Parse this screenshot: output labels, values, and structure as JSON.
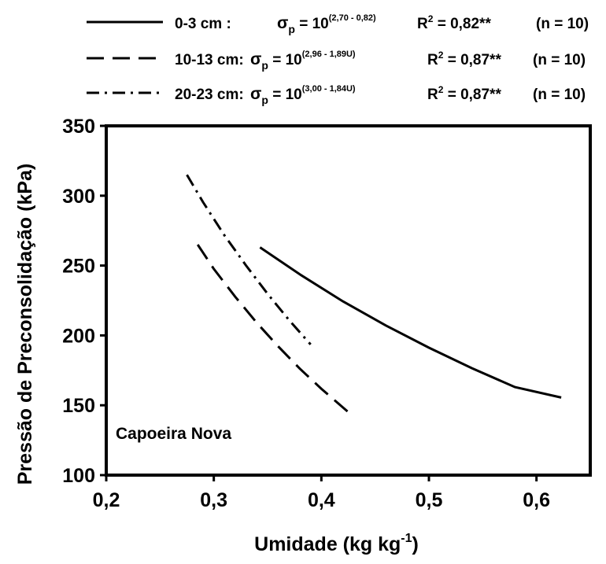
{
  "chart_data": {
    "type": "line",
    "xlabel": "Umidade (kg kg",
    "xlabel_sup": "-1",
    "xlabel_end": ")",
    "ylabel": "Pressão de Preconsolidação (kPa)",
    "xlim": [
      0.2,
      0.65
    ],
    "ylim": [
      100,
      350
    ],
    "x_ticks": [
      0.2,
      0.3,
      0.4,
      0.5,
      0.6
    ],
    "x_tick_labels": [
      "0,2",
      "0,3",
      "0,4",
      "0,5",
      "0,6"
    ],
    "y_ticks": [
      100,
      150,
      200,
      250,
      300,
      350
    ],
    "y_tick_labels": [
      "100",
      "150",
      "200",
      "250",
      "300",
      "350"
    ],
    "grid": false,
    "annotation": "Capoeira Nova",
    "legend_position": "top",
    "series": [
      {
        "dash": "solid",
        "label_depth": "0-3 cm :",
        "eq_sigma": "σ",
        "eq_sub": "p",
        "eq_base": " = 10",
        "eq_exp": "(2,70 - 0,82)",
        "r2_prefix": "R",
        "r2_sup": "2",
        "r2_value": " = 0,82**",
        "n_text": "(n = 10)",
        "x": [
          0.343,
          0.38,
          0.42,
          0.46,
          0.5,
          0.54,
          0.58,
          0.623
        ],
        "y": [
          263.0,
          243.7,
          224.4,
          207.1,
          191.2,
          176.5,
          163.0,
          155.5
        ]
      },
      {
        "dash": "dash",
        "label_depth": "10-13 cm:",
        "eq_sigma": "σ",
        "eq_sub": "p",
        "eq_base": " = 10",
        "eq_exp": "(2,96 - 1,89U)",
        "r2_prefix": "R",
        "r2_sup": "2",
        "r2_value": " = 0,87**",
        "n_text": "(n = 10)",
        "x": [
          0.285,
          0.3,
          0.32,
          0.34,
          0.36,
          0.38,
          0.4,
          0.43
        ],
        "y": [
          265.0,
          247.6,
          227.6,
          209.0,
          192.0,
          176.2,
          161.8,
          141.8
        ]
      },
      {
        "dash": "dashdot",
        "label_depth": "20-23 cm:",
        "eq_sigma": "σ",
        "eq_sub": "p",
        "eq_base": " = 10",
        "eq_exp": "(3,00 - 1,84U)",
        "r2_prefix": "R",
        "r2_sup": "2",
        "r2_value": " = 0,87**",
        "n_text": "(n = 10)",
        "x": [
          0.275,
          0.29,
          0.31,
          0.33,
          0.35,
          0.37,
          0.39
        ],
        "y": [
          315.0,
          295.4,
          271.5,
          250.0,
          229.8,
          211.0,
          193.5
        ]
      }
    ]
  }
}
